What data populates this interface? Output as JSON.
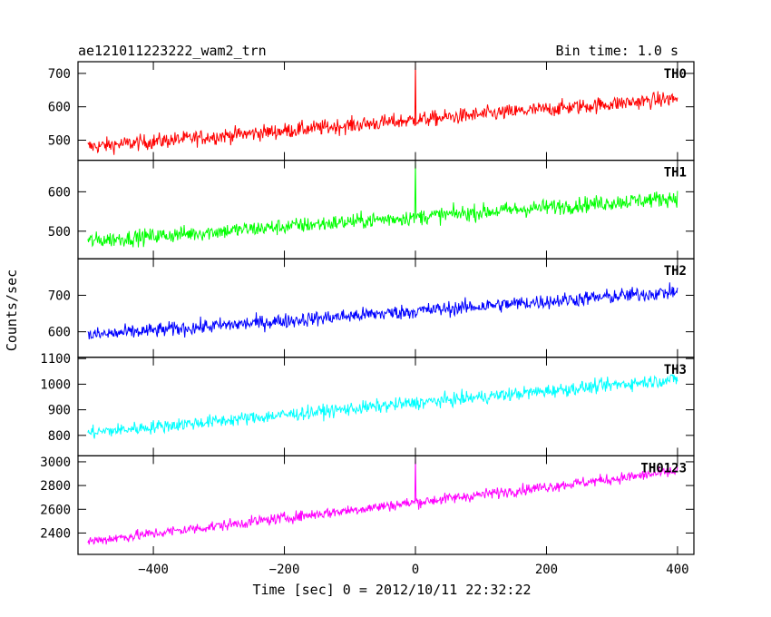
{
  "chart_data": {
    "type": "line",
    "title": "ae121011223222_wam2_trn",
    "subtitle": "Bin time: 1.0 s",
    "xlabel": "Time [sec] 0 = 2012/10/11 22:32:22",
    "ylabel": "Counts/sec",
    "xlim": [
      -515,
      425
    ],
    "xticks": [
      -400,
      -200,
      0,
      200,
      400
    ],
    "x_tick_labels": [
      "−400",
      "−200",
      "0",
      "200",
      "400"
    ],
    "panels": [
      {
        "name": "TH0",
        "color": "#ff0000",
        "ylim": [
          440,
          735
        ],
        "yticks": [
          500,
          600,
          700
        ],
        "start": 480,
        "end": 625,
        "noise": 40,
        "samples": [
          [
            -500,
            480
          ],
          [
            -300,
            505
          ],
          [
            -100,
            540
          ],
          [
            0,
            560
          ],
          [
            100,
            580
          ],
          [
            200,
            590
          ],
          [
            300,
            610
          ],
          [
            400,
            625
          ]
        ],
        "spike": {
          "x": 0,
          "y": 735
        }
      },
      {
        "name": "TH1",
        "color": "#00ff00",
        "ylim": [
          430,
          680
        ],
        "yticks": [
          500,
          600
        ],
        "start": 475,
        "end": 585,
        "noise": 35,
        "samples": [
          [
            -500,
            475
          ],
          [
            -300,
            485
          ],
          [
            -100,
            520
          ],
          [
            0,
            540
          ],
          [
            100,
            555
          ],
          [
            200,
            565
          ],
          [
            300,
            575
          ],
          [
            400,
            585
          ]
        ],
        "spike": {
          "x": 0,
          "y": 680
        }
      },
      {
        "name": "TH2",
        "color": "#0000ff",
        "ylim": [
          530,
          800
        ],
        "yticks": [
          600,
          700
        ],
        "start": 590,
        "end": 710,
        "noise": 35,
        "samples": [
          [
            -500,
            590
          ],
          [
            -300,
            610
          ],
          [
            -100,
            635
          ],
          [
            0,
            655
          ],
          [
            100,
            670
          ],
          [
            200,
            685
          ],
          [
            300,
            700
          ],
          [
            400,
            710
          ]
        ]
      },
      {
        "name": "TH3",
        "color": "#00ffff",
        "ylim": [
          720,
          1105
        ],
        "yticks": [
          800,
          900,
          1000,
          1100
        ],
        "start": 810,
        "end": 1020,
        "noise": 45,
        "samples": [
          [
            -500,
            810
          ],
          [
            -300,
            850
          ],
          [
            -100,
            895
          ],
          [
            0,
            920
          ],
          [
            100,
            950
          ],
          [
            200,
            975
          ],
          [
            300,
            1000
          ],
          [
            400,
            1020
          ]
        ]
      },
      {
        "name": "TH0123",
        "color": "#ff00ff",
        "ylim": [
          2220,
          3050
        ],
        "yticks": [
          2400,
          2600,
          2800,
          3000
        ],
        "start": 2330,
        "end": 2920,
        "noise": 80,
        "samples": [
          [
            -500,
            2330
          ],
          [
            -300,
            2460
          ],
          [
            -100,
            2580
          ],
          [
            0,
            2660
          ],
          [
            100,
            2740
          ],
          [
            200,
            2810
          ],
          [
            300,
            2870
          ],
          [
            400,
            2920
          ]
        ],
        "spike": {
          "x": 0,
          "y": 3050
        }
      }
    ],
    "ytick_labels": [
      [
        "500",
        "600",
        "700"
      ],
      [
        "500",
        "600"
      ],
      [
        "600",
        "700"
      ],
      [
        "800",
        "900",
        "1000",
        "1100"
      ],
      [
        "2400",
        "2600",
        "2800",
        "3000"
      ]
    ],
    "grid": false,
    "legend": "none"
  }
}
